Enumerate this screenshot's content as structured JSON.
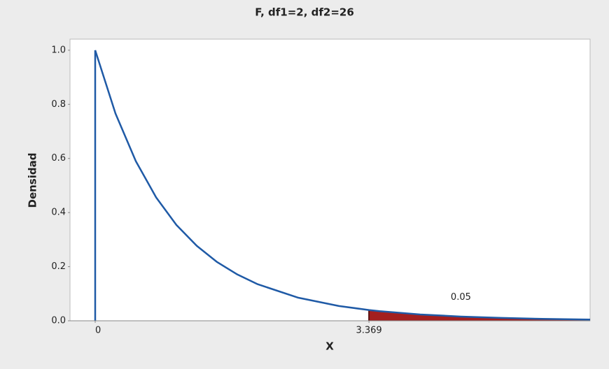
{
  "chart_data": {
    "type": "line",
    "title": "F, df1=2, df2=26",
    "xlabel": "X",
    "ylabel": "Densidad",
    "x": [
      0,
      0.25,
      0.5,
      0.75,
      1,
      1.25,
      1.5,
      1.75,
      2,
      2.5,
      3,
      3.369,
      3.5,
      4,
      4.5,
      5,
      5.5,
      6,
      6.09
    ],
    "series": [
      {
        "color": "#1f5aa6",
        "values": [
          1,
          0.766,
          0.59,
          0.456,
          0.354,
          0.277,
          0.217,
          0.171,
          0.135,
          0.0852,
          0.0546,
          0.0397,
          0.0355,
          0.0234,
          0.0156,
          0.0105,
          0.00716,
          0.00493,
          0.0045
        ]
      }
    ],
    "shaded_region": {
      "from": 3.369,
      "area": 0.05,
      "color": "#a31f1f"
    },
    "xlim": [
      -0.31,
      6.09
    ],
    "ylim": [
      0,
      1.041
    ],
    "xticks": [
      0,
      3.369
    ],
    "yticks": [
      {
        "value": 0,
        "label": "0.0"
      },
      0.2,
      0.4,
      0.6,
      0.8,
      {
        "value": 1,
        "label": "1.0"
      }
    ]
  }
}
